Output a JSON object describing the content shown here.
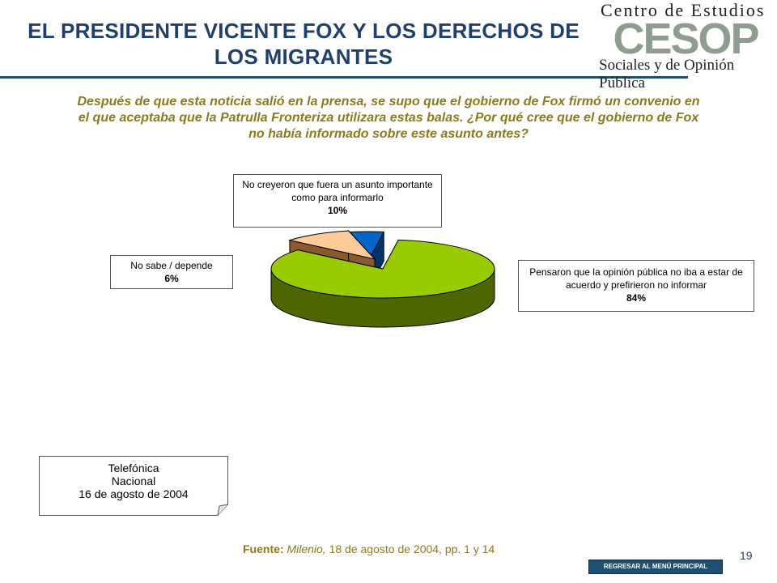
{
  "slide": {
    "title": "EL PRESIDENTE VICENTE FOX Y LOS DERECHOS DE LOS MIGRANTES",
    "page_number": "19"
  },
  "logo": {
    "top_text": "Centro de Estudios",
    "mark_text": "CESOP",
    "bottom_text": "Sociales y de Opinión Pública"
  },
  "question": "Después de que esta noticia salió en la prensa, se supo que el gobierno de Fox firmó un convenio en el que aceptaba que la Patrulla Fronteriza utilizara estas balas. ¿Por qué cree que el gobierno de Fox no había informado sobre este asunto antes?",
  "survey_note": {
    "line1": "Telefónica",
    "line2": "Nacional",
    "line3": "16 de agosto de 2004"
  },
  "source": {
    "label": "Fuente:",
    "publication": "Milenio,",
    "detail": "18 de agosto de 2004, pp. 1 y 14"
  },
  "nav": {
    "back_label": "REGRESAR AL MENÚ PRINCIPAL"
  },
  "chart_data": {
    "type": "pie",
    "title": "",
    "slices": [
      {
        "label": "Pensaron que la opinión pública no iba a estar de acuerdo y prefirieron no informar",
        "value": 84,
        "value_label": "84%",
        "color": "#99cc00",
        "side_color": "#4d6600"
      },
      {
        "label": "No creyeron que fuera un asunto importante como para informarlo",
        "value": 10,
        "value_label": "10%",
        "color": "#ffcc99",
        "side_color": "#8a5a2a"
      },
      {
        "label": "No sabe / depende",
        "value": 6,
        "value_label": "6%",
        "color": "#0066cc",
        "side_color": "#003366"
      }
    ]
  }
}
